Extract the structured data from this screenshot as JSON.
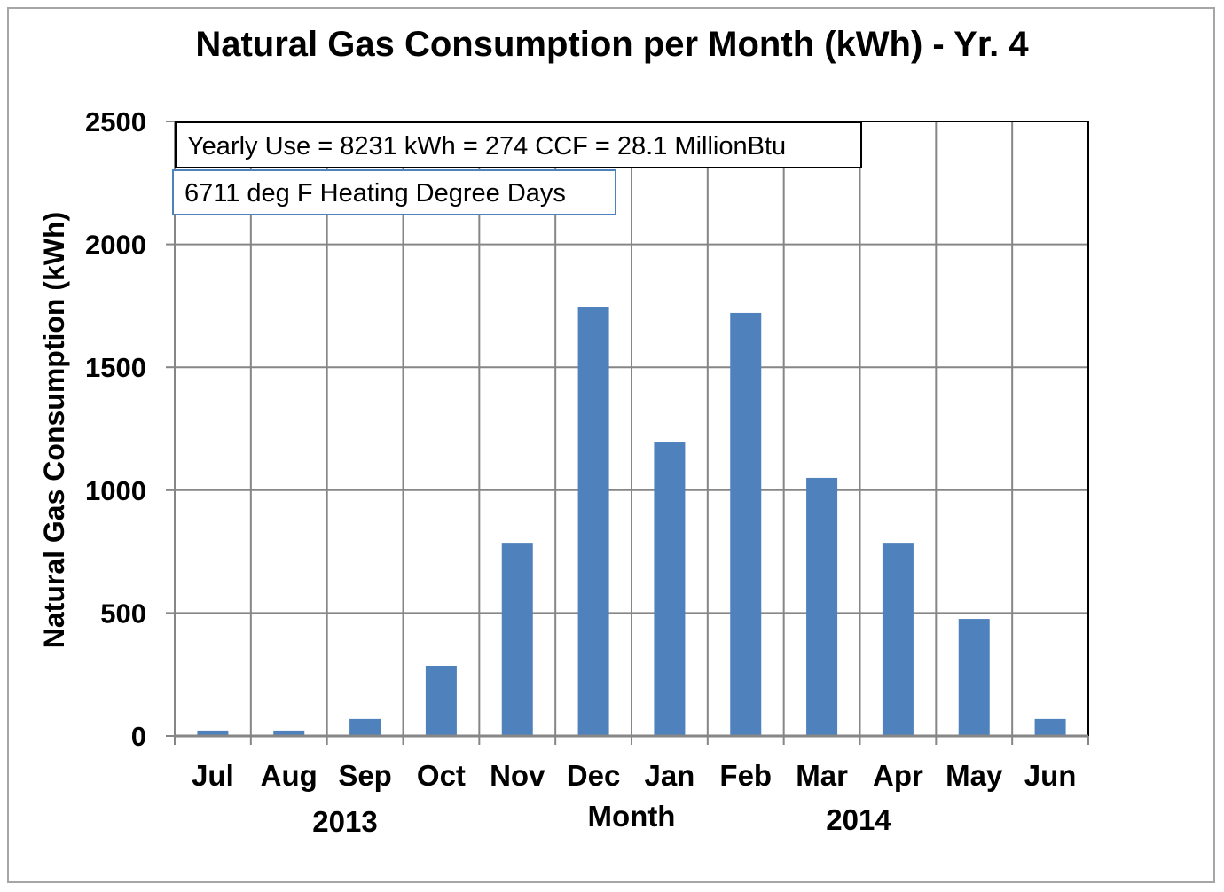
{
  "chart_data": {
    "type": "bar",
    "title": "Natural Gas Consumption per Month (kWh) - Yr. 4",
    "xlabel": "Month",
    "ylabel": "Natural Gas Consumption (kWh)",
    "ylim": [
      0,
      2500
    ],
    "yticks": [
      "0",
      "500",
      "1000",
      "1500",
      "2000",
      "2500"
    ],
    "grid": true,
    "categories": [
      "Jul",
      "Aug",
      "Sep",
      "Oct",
      "Nov",
      "Dec",
      "Jan",
      "Feb",
      "Mar",
      "Apr",
      "May",
      "Jun"
    ],
    "year_groups": [
      {
        "label": "2013",
        "categories": [
          "Jul",
          "Aug",
          "Sep",
          "Oct"
        ]
      },
      {
        "label": "2014",
        "categories": [
          "Feb",
          "Mar",
          "Apr"
        ]
      }
    ],
    "values": [
      22,
      22,
      69,
      285,
      786,
      1746,
      1194,
      1721,
      1050,
      786,
      476,
      69
    ],
    "bar_color": "#4f81bd",
    "annotations": [
      "Yearly  Use = 8231 kWh = 274 CCF = 28.1 MillionBtu",
      "6711 deg F Heating  Degree  Days"
    ]
  }
}
